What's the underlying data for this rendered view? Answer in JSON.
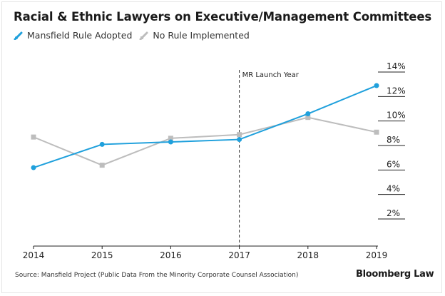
{
  "title": "Racial & Ethnic Lawyers on Executive/Management Committees",
  "legend": [
    {
      "label": "Mansfield Rule Adopted",
      "color": "#1fa0dc",
      "icon": "diagonal-line-icon"
    },
    {
      "label": "No Rule Implemented",
      "color": "#bdbdbd",
      "icon": "diagonal-line-icon"
    }
  ],
  "source": "Source: Mansfield Project (Public Data From the Minority Corporate Counsel Association)",
  "brand": "Bloomberg Law",
  "chart_data": {
    "type": "line",
    "title": "Racial & Ethnic Lawyers on Executive/Management Committees",
    "xlabel": "",
    "ylabel": "",
    "x": [
      2014,
      2015,
      2016,
      2017,
      2018,
      2019
    ],
    "x_tick_labels": [
      "2014",
      "2015",
      "2016",
      "2017",
      "2018",
      "2019"
    ],
    "y_tick_labels": [
      "2%",
      "4%",
      "6%",
      "8%",
      "10%",
      "12%",
      "14%"
    ],
    "y_ticks": [
      2,
      4,
      6,
      8,
      10,
      12,
      14
    ],
    "ylim": [
      0,
      14.5
    ],
    "y_axis_side": "right",
    "grid": false,
    "legend_position": "top-left",
    "series": [
      {
        "name": "Mansfield Rule Adopted",
        "color": "#1fa0dc",
        "marker": "circle",
        "values": [
          5.9,
          7.8,
          8.0,
          8.2,
          10.3,
          12.6
        ]
      },
      {
        "name": "No Rule Implemented",
        "color": "#bdbdbd",
        "marker": "square",
        "values": [
          8.4,
          6.1,
          8.3,
          8.6,
          10.0,
          8.8
        ]
      }
    ],
    "annotations": [
      {
        "x": 2017,
        "label": "MR Launch Year",
        "style": "dashed-vertical-line"
      }
    ]
  }
}
